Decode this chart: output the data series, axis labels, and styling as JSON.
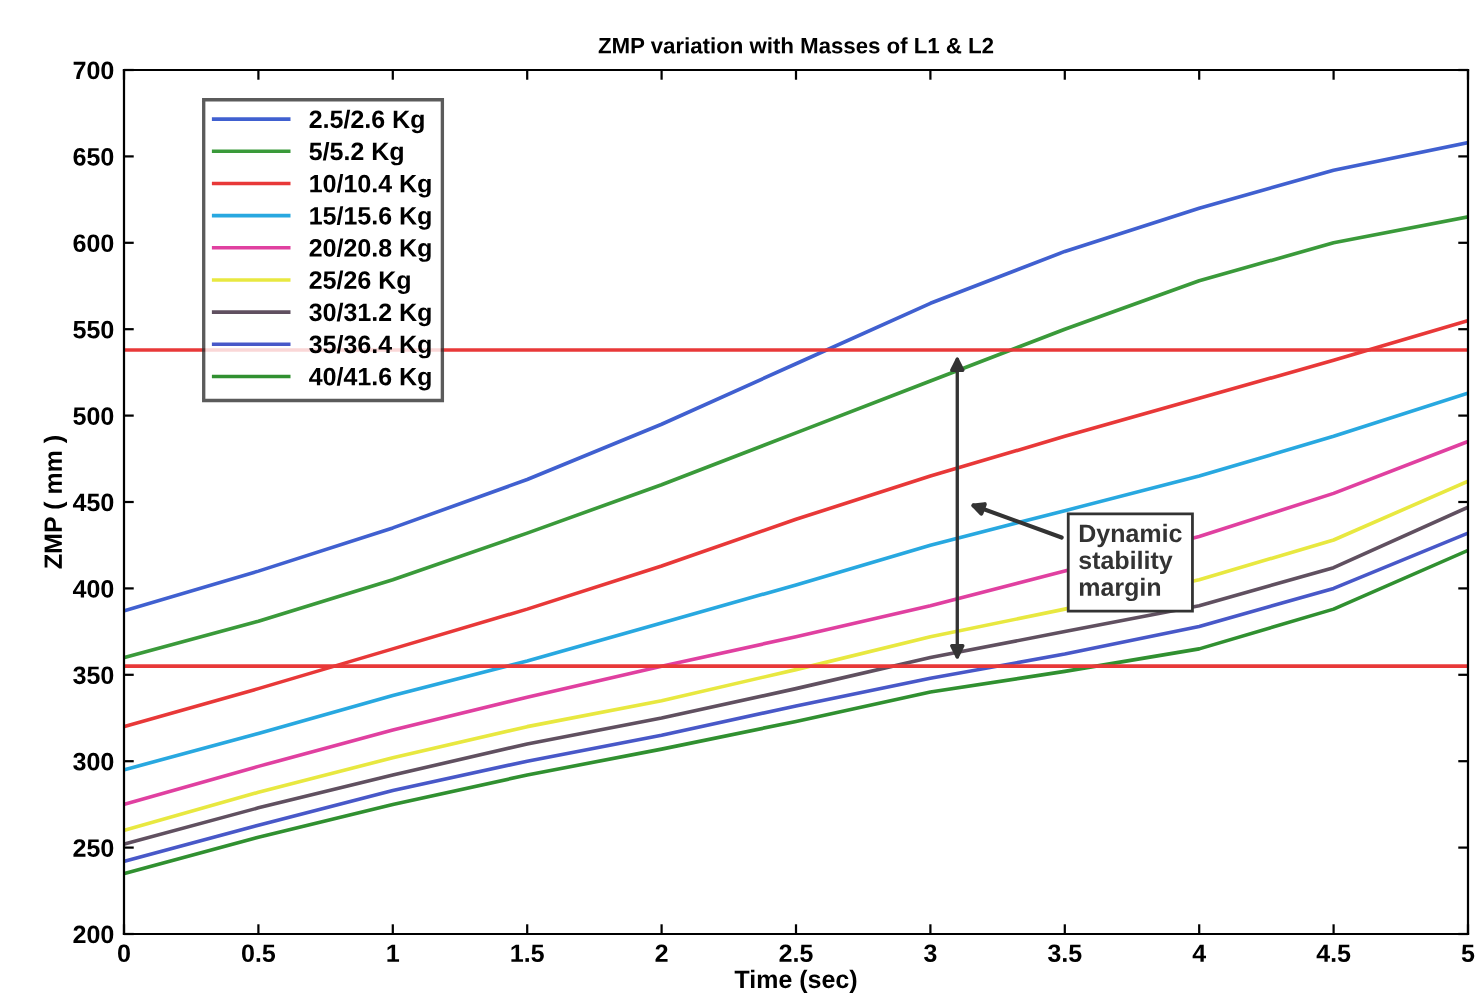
{
  "chart_data": {
    "type": "line",
    "title": "ZMP variation with Masses of L1 & L2",
    "xlabel": "Time (sec)",
    "ylabel": "ZMP ( mm )",
    "x": [
      0,
      0.5,
      1,
      1.5,
      2,
      2.5,
      3,
      3.5,
      4,
      4.5,
      5
    ],
    "series": [
      {
        "name": "2.5/2.6 Kg",
        "color": "#4060d0",
        "values": [
          387,
          410,
          435,
          463,
          495,
          530,
          565,
          595,
          620,
          642,
          658
        ]
      },
      {
        "name": "5/5.2 Kg",
        "color": "#3a9a3a",
        "values": [
          360,
          381,
          405,
          432,
          460,
          490,
          520,
          550,
          578,
          600,
          615
        ]
      },
      {
        "name": "10/10.4 Kg",
        "color": "#e83838",
        "values": [
          320,
          342,
          365,
          388,
          413,
          440,
          465,
          488,
          510,
          532,
          555
        ]
      },
      {
        "name": "15/15.6 Kg",
        "color": "#28a8e0",
        "values": [
          295,
          316,
          338,
          358,
          380,
          402,
          425,
          445,
          465,
          488,
          513
        ]
      },
      {
        "name": "20/20.8 Kg",
        "color": "#e040a0",
        "values": [
          275,
          297,
          318,
          337,
          355,
          372,
          390,
          410,
          430,
          455,
          485
        ]
      },
      {
        "name": "25/26 Kg",
        "color": "#e8e840",
        "values": [
          260,
          282,
          302,
          320,
          335,
          353,
          372,
          388,
          405,
          428,
          462
        ]
      },
      {
        "name": "30/31.2 Kg",
        "color": "#605060",
        "values": [
          252,
          273,
          292,
          310,
          325,
          342,
          360,
          375,
          390,
          412,
          447
        ]
      },
      {
        "name": "35/36.4 Kg",
        "color": "#4858c8",
        "values": [
          242,
          263,
          283,
          300,
          315,
          332,
          348,
          362,
          378,
          400,
          432
        ]
      },
      {
        "name": "40/41.6 Kg",
        "color": "#309030",
        "values": [
          235,
          256,
          275,
          292,
          307,
          323,
          340,
          352,
          365,
          388,
          422
        ]
      }
    ],
    "xlim": [
      0,
      5
    ],
    "xticks": [
      0,
      0.5,
      1,
      1.5,
      2,
      2.5,
      3,
      3.5,
      4,
      4.5,
      5
    ],
    "ylim": [
      200,
      700
    ],
    "yticks": [
      200,
      250,
      300,
      350,
      400,
      450,
      500,
      550,
      600,
      650,
      700
    ],
    "ref_lines": [
      {
        "axis": "y",
        "value": 538,
        "color": "#e83838"
      },
      {
        "axis": "y",
        "value": 355,
        "color": "#e83838"
      }
    ],
    "annotations": [
      "Dynamic\nstability\nmargin"
    ],
    "legend": "top left",
    "grid": false,
    "marker": "none",
    "line_style": "solid"
  }
}
